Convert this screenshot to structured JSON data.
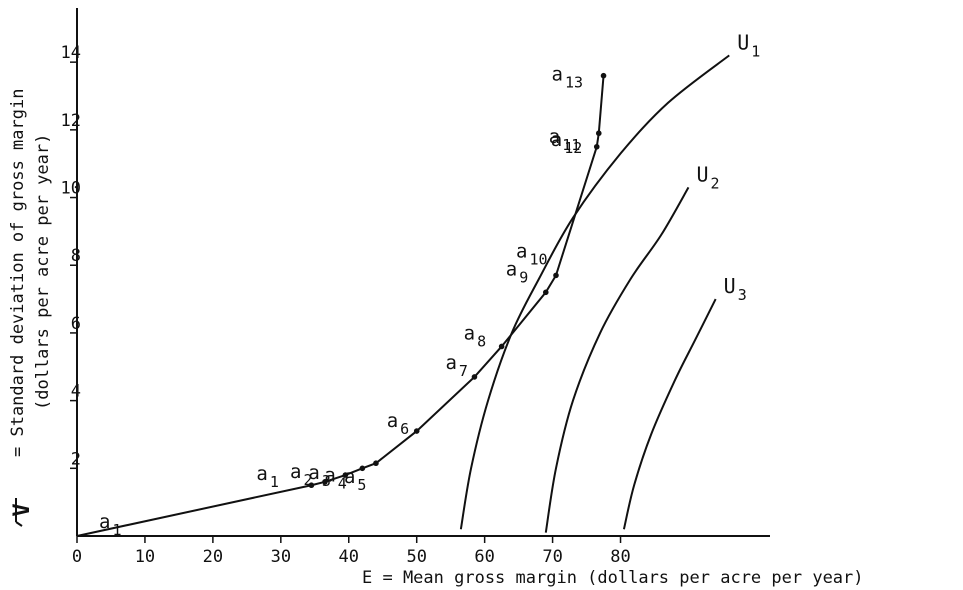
{
  "chart_data": {
    "type": "line",
    "xlabel": "E = Mean gross margin (dollars per acre per year)",
    "ylabel_symbol": "V",
    "ylabel_line1": "= Standard deviation of gross margin",
    "ylabel_line2": "(dollars per acre per year)",
    "xlim": [
      0,
      102
    ],
    "ylim": [
      0,
      15.6
    ],
    "x_ticks": [
      0,
      10,
      20,
      30,
      40,
      50,
      60,
      70,
      80
    ],
    "y_ticks": [
      2,
      4,
      6,
      8,
      10,
      12,
      14
    ],
    "frontier": {
      "points": [
        {
          "label": "a",
          "sub": "1",
          "x": 0,
          "y": 0
        },
        {
          "label": "a",
          "sub": "1",
          "x": 34.5,
          "y": 1.5
        },
        {
          "label": "a",
          "sub": "2",
          "x": 36.5,
          "y": 1.6
        },
        {
          "label": "a",
          "sub": "3",
          "x": 39.5,
          "y": 1.8
        },
        {
          "label": "a",
          "sub": "4",
          "x": 42,
          "y": 2.0
        },
        {
          "label": "a",
          "sub": "5",
          "x": 44,
          "y": 2.15
        },
        {
          "label": "a",
          "sub": "6",
          "x": 50,
          "y": 3.1
        },
        {
          "label": "a",
          "sub": "7",
          "x": 58.5,
          "y": 4.7
        },
        {
          "label": "a",
          "sub": "8",
          "x": 62.5,
          "y": 5.6
        },
        {
          "label": "a",
          "sub": "9",
          "x": 69,
          "y": 7.2
        },
        {
          "label": "a",
          "sub": "10",
          "x": 70.5,
          "y": 7.7
        },
        {
          "label": "a",
          "sub": "11",
          "x": 76.5,
          "y": 11.5
        },
        {
          "label": "a",
          "sub": "12",
          "x": 76.8,
          "y": 11.9
        },
        {
          "label": "a",
          "sub": "13",
          "x": 77.5,
          "y": 13.6
        }
      ]
    },
    "indifference_curves": [
      {
        "label": "U",
        "sub": "1",
        "points": [
          [
            56.5,
            0.2
          ],
          [
            58,
            2
          ],
          [
            60.5,
            4
          ],
          [
            64,
            6
          ],
          [
            68,
            7.6
          ],
          [
            73,
            9.4
          ],
          [
            80,
            11.3
          ],
          [
            87,
            12.8
          ],
          [
            96,
            14.2
          ]
        ]
      },
      {
        "label": "U",
        "sub": "2",
        "points": [
          [
            69,
            0.1
          ],
          [
            70.5,
            2
          ],
          [
            73,
            4
          ],
          [
            77,
            6
          ],
          [
            81.5,
            7.6
          ],
          [
            86,
            8.9
          ],
          [
            90,
            10.3
          ]
        ]
      },
      {
        "label": "U",
        "sub": "3",
        "points": [
          [
            80.5,
            0.2
          ],
          [
            82,
            1.5
          ],
          [
            84.5,
            3
          ],
          [
            88,
            4.6
          ],
          [
            91,
            5.8
          ],
          [
            94,
            7.0
          ]
        ]
      }
    ]
  }
}
